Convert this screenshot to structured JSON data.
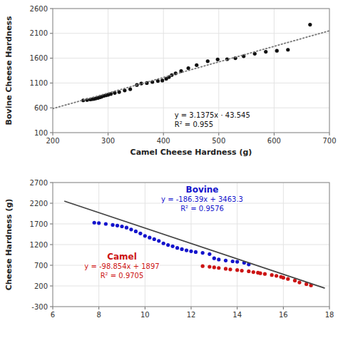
{
  "chart_data": [
    {
      "type": "scatter",
      "xlabel": "Camel Cheese Hardness (g)",
      "ylabel": "Bovine Cheese Hardness",
      "xlim": [
        200,
        700
      ],
      "ylim": [
        100,
        2600
      ],
      "xticks": [
        200,
        300,
        400,
        500,
        600,
        700
      ],
      "yticks": [
        100,
        600,
        1100,
        1600,
        2100,
        2600
      ],
      "grid": true,
      "series": [
        {
          "type": "scatter",
          "marker": "circle",
          "color": "#111111",
          "x": [
            255,
            262,
            268,
            272,
            275,
            278,
            282,
            285,
            288,
            292,
            296,
            300,
            305,
            312,
            320,
            330,
            340,
            352,
            360,
            370,
            380,
            390,
            398,
            405,
            410,
            415,
            422,
            432,
            445,
            460,
            480,
            498,
            515,
            530,
            545,
            565,
            585,
            605,
            625,
            665
          ],
          "values": [
            750,
            758,
            768,
            775,
            782,
            790,
            800,
            812,
            822,
            840,
            852,
            862,
            878,
            900,
            918,
            950,
            975,
            1060,
            1090,
            1100,
            1120,
            1140,
            1150,
            1185,
            1220,
            1260,
            1295,
            1340,
            1400,
            1460,
            1540,
            1575,
            1580,
            1600,
            1640,
            1690,
            1730,
            1750,
            1770,
            2275
          ]
        },
        {
          "type": "line",
          "line_style": "dotted",
          "color": "#777777",
          "x": [
            200,
            700
          ],
          "values": [
            583.955,
            2152.705
          ]
        }
      ],
      "annotations": [
        {
          "lines": [
            "y = 3.1375x · 43.545",
            "R² = 0.955"
          ]
        }
      ]
    },
    {
      "type": "scatter",
      "ylabel": "Cheese Hardness (g)",
      "xlim": [
        6,
        18
      ],
      "ylim": [
        -300,
        2700
      ],
      "xticks": [
        6,
        8,
        10,
        12,
        14,
        16,
        18
      ],
      "yticks": [
        -300,
        200,
        700,
        1200,
        1700,
        2200,
        2700
      ],
      "grid": true,
      "series": [
        {
          "type": "scatter",
          "marker": "circle",
          "color": "#1414cc",
          "x": [
            7.8,
            8.0,
            8.3,
            8.6,
            8.8,
            9.0,
            9.2,
            9.4,
            9.6,
            9.8,
            10.0,
            10.2,
            10.4,
            10.6,
            10.8,
            11.0,
            11.2,
            11.4,
            11.6,
            11.8,
            12.0,
            12.2,
            12.5,
            12.8,
            13.0,
            13.2,
            13.5,
            13.8,
            14.0,
            14.3,
            14.5
          ],
          "values": [
            1730,
            1720,
            1700,
            1675,
            1660,
            1640,
            1610,
            1565,
            1520,
            1470,
            1410,
            1370,
            1330,
            1290,
            1230,
            1190,
            1160,
            1120,
            1090,
            1060,
            1040,
            1020,
            1000,
            970,
            870,
            840,
            815,
            795,
            785,
            760,
            720
          ]
        },
        {
          "type": "scatter",
          "marker": "circle",
          "color": "#cc1414",
          "x": [
            12.5,
            12.8,
            13.0,
            13.2,
            13.5,
            13.7,
            14.0,
            14.2,
            14.5,
            14.7,
            14.9,
            15.0,
            15.2,
            15.5,
            15.7,
            15.9,
            16.0,
            16.2,
            16.5,
            16.7,
            17.0,
            17.2
          ],
          "values": [
            680,
            665,
            650,
            635,
            615,
            600,
            585,
            570,
            555,
            535,
            520,
            508,
            490,
            465,
            445,
            420,
            400,
            370,
            330,
            285,
            245,
            215
          ]
        },
        {
          "type": "line",
          "line_style": "solid",
          "color": "#444444",
          "x": [
            6.5,
            17.8
          ],
          "values": [
            2251.765,
            145.558
          ]
        }
      ],
      "annotations": [
        {
          "title": "Bovine",
          "lines": [
            "y = -186.39x + 3463.3",
            "R² = 0.9576"
          ],
          "color": "#1414cc"
        },
        {
          "title": "Camel",
          "lines": [
            "y = -98.854x + 1897",
            "R² = 0.9705"
          ],
          "color": "#cc1414"
        }
      ]
    }
  ]
}
